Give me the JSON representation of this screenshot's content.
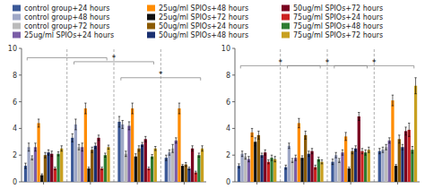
{
  "chart_data": [
    {
      "type": "bar",
      "legend": "top",
      "tick_labels": "y",
      "categories": [
        null,
        null,
        null,
        null
      ],
      "ylim": [
        0,
        10
      ],
      "yticks": [
        0,
        2,
        4,
        6,
        8,
        10
      ],
      "annotations": [
        "*",
        "*"
      ],
      "series": [
        {
          "name": "control group+24 hours",
          "color": "#3B5998",
          "values": [
            1.2,
            3.3,
            4.5,
            1.8
          ],
          "errors": [
            0.2,
            0.3,
            0.4,
            0.2
          ]
        },
        {
          "name": "control group+48 hours",
          "color": "#9FA8C7",
          "values": [
            2.6,
            4.3,
            4.3,
            2.2
          ],
          "errors": [
            0.3,
            0.4,
            0.3,
            0.2
          ]
        },
        {
          "name": "control group+72 hours",
          "color": "#BBBBBB",
          "values": [
            1.8,
            2.6,
            2.1,
            2.5
          ],
          "errors": [
            0.15,
            0.2,
            0.2,
            0.3
          ]
        },
        {
          "name": "25ug/ml SPIOs+24 hours",
          "color": "#7B5EA7",
          "values": [
            2.6,
            2.6,
            4.2,
            3.1
          ],
          "errors": [
            0.3,
            0.3,
            0.3,
            0.2
          ]
        },
        {
          "name": "25ug/ml SPIOs+48 hours",
          "color": "#FF8C00",
          "values": [
            4.4,
            5.5,
            5.5,
            5.5
          ],
          "errors": [
            0.3,
            0.4,
            0.4,
            0.4
          ]
        },
        {
          "name": "25ug/ml SPIOs+72 hours",
          "color": "#111111",
          "values": [
            0.5,
            1.0,
            1.9,
            1.2
          ],
          "errors": [
            0.1,
            0.1,
            0.2,
            0.1
          ]
        },
        {
          "name": "50ug/ml SPIOs+24 hours",
          "color": "#8B5A00",
          "values": [
            2.0,
            2.4,
            2.5,
            1.3
          ],
          "errors": [
            0.2,
            0.2,
            0.2,
            0.15
          ]
        },
        {
          "name": "50ug/ml SPIOs+48 hours",
          "color": "#1A3070",
          "values": [
            2.2,
            2.7,
            2.8,
            1.0
          ],
          "errors": [
            0.2,
            0.2,
            0.15,
            0.1
          ]
        },
        {
          "name": "50ug/ml SPIOs+72 hours",
          "color": "#7A0020",
          "values": [
            2.1,
            3.3,
            3.2,
            2.5
          ],
          "errors": [
            0.2,
            0.2,
            0.2,
            0.2
          ]
        },
        {
          "name": "75ug/ml SPIOs+24 hours",
          "color": "#CC2222",
          "values": [
            1.0,
            1.0,
            1.0,
            0.7
          ],
          "errors": [
            0.1,
            0.1,
            0.1,
            0.1
          ]
        },
        {
          "name": "75ug/ml SPIOs+48 hours",
          "color": "#2E7D32",
          "values": [
            2.1,
            2.0,
            1.9,
            2.0
          ],
          "errors": [
            0.15,
            0.15,
            0.15,
            0.15
          ]
        },
        {
          "name": "75ug/ml SPIOs+72 hours",
          "color": "#C8A020",
          "values": [
            2.5,
            2.6,
            2.5,
            2.5
          ],
          "errors": [
            0.2,
            0.15,
            0.15,
            0.2
          ]
        }
      ]
    },
    {
      "type": "bar",
      "tick_labels": "y",
      "categories": [
        null,
        null,
        null,
        null
      ],
      "ylim": [
        0,
        10
      ],
      "yticks": [
        0,
        2,
        4,
        6,
        8,
        10
      ],
      "annotations": [
        "*",
        "*",
        "*"
      ],
      "series": [
        {
          "color": "#3B5998",
          "values": [
            1.2,
            1.1,
            1.5,
            2.3
          ],
          "errors": [
            0.15,
            0.15,
            0.2,
            0.2
          ]
        },
        {
          "color": "#9FA8C7",
          "values": [
            2.1,
            2.7,
            2.0,
            2.4
          ],
          "errors": [
            0.2,
            0.2,
            0.2,
            0.2
          ]
        },
        {
          "color": "#BBBBBB",
          "values": [
            1.9,
            1.6,
            1.6,
            2.6
          ],
          "errors": [
            0.2,
            0.15,
            0.15,
            0.2
          ]
        },
        {
          "color": "#7B5EA7",
          "values": [
            1.7,
            1.8,
            2.2,
            3.1
          ],
          "errors": [
            0.2,
            0.2,
            0.2,
            0.2
          ]
        },
        {
          "color": "#FF8C00",
          "values": [
            3.7,
            4.4,
            3.4,
            6.1
          ],
          "errors": [
            0.3,
            0.35,
            0.3,
            0.4
          ]
        },
        {
          "color": "#111111",
          "values": [
            3.0,
            1.8,
            1.0,
            1.2
          ],
          "errors": [
            0.3,
            0.15,
            0.1,
            0.1
          ]
        },
        {
          "color": "#8B5A00",
          "values": [
            3.5,
            3.5,
            2.3,
            3.2
          ],
          "errors": [
            0.3,
            0.3,
            0.2,
            0.3
          ]
        },
        {
          "color": "#1A3070",
          "values": [
            2.0,
            2.1,
            2.5,
            2.6
          ],
          "errors": [
            0.15,
            0.2,
            0.2,
            0.2
          ]
        },
        {
          "color": "#7A0020",
          "values": [
            2.2,
            2.3,
            4.9,
            3.8
          ],
          "errors": [
            0.2,
            0.2,
            0.3,
            0.3
          ]
        },
        {
          "color": "#CC2222",
          "values": [
            1.5,
            1.1,
            2.3,
            3.9
          ],
          "errors": [
            0.15,
            0.15,
            0.2,
            0.5
          ]
        },
        {
          "color": "#2E7D32",
          "values": [
            1.8,
            1.7,
            2.2,
            2.4
          ],
          "errors": [
            0.2,
            0.15,
            0.2,
            0.25
          ]
        },
        {
          "color": "#C8A020",
          "values": [
            1.7,
            1.5,
            2.4,
            7.2
          ],
          "errors": [
            0.2,
            0.15,
            0.2,
            0.6
          ]
        }
      ]
    }
  ]
}
